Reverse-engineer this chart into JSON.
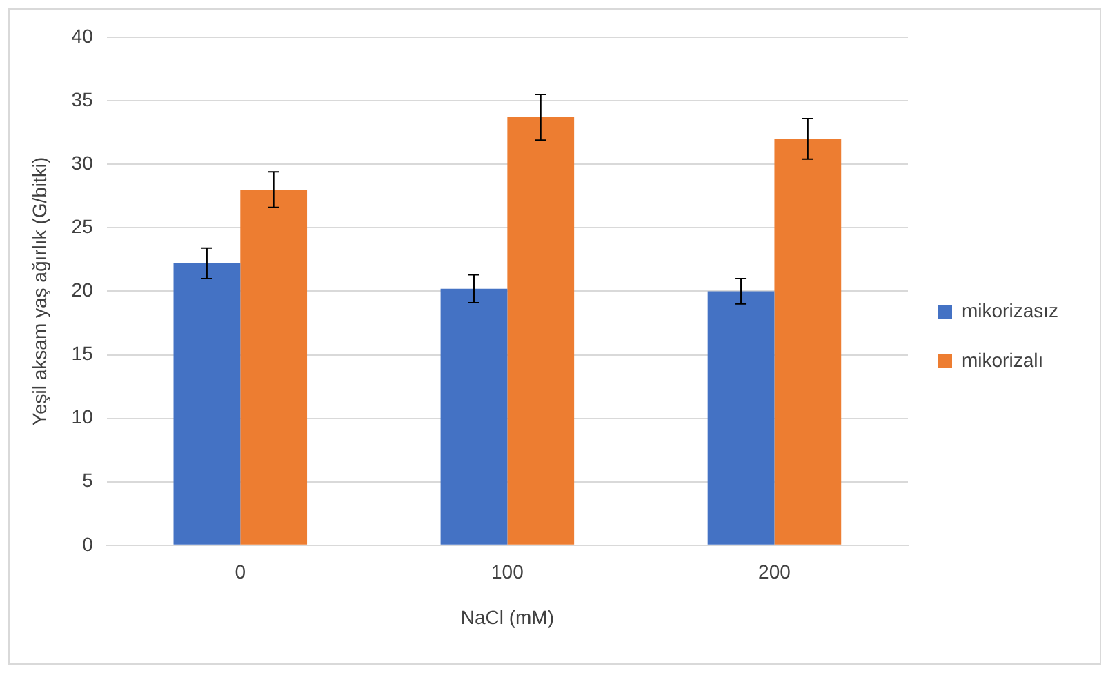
{
  "chart_data": {
    "type": "bar",
    "xlabel": "NaCl (mM)",
    "ylabel": "Yeşil aksam yaş ağırlık (G/bitki)",
    "categories": [
      "0",
      "100",
      "200"
    ],
    "series": [
      {
        "name": "mikorizasız",
        "color": "#4472c4",
        "values": [
          22.2,
          20.2,
          20
        ],
        "errors": [
          1.2,
          1.1,
          1.0
        ]
      },
      {
        "name": "mikorizalı",
        "color": "#ed7d31",
        "values": [
          28,
          33.7,
          32
        ],
        "errors": [
          1.4,
          1.8,
          1.6
        ]
      }
    ],
    "ylim": [
      0,
      40
    ],
    "yticks": [
      0,
      5,
      10,
      15,
      20,
      25,
      30,
      35,
      40
    ],
    "grid": "y",
    "legend": "right"
  }
}
